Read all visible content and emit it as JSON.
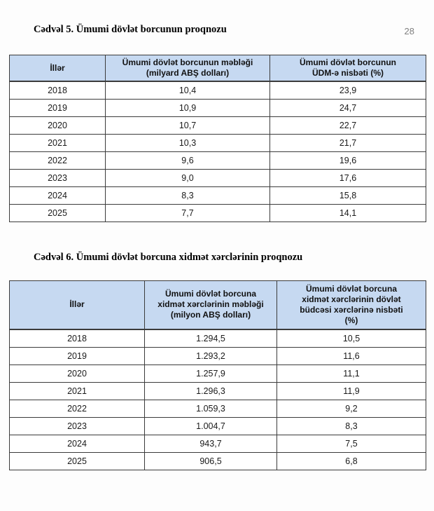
{
  "page": {
    "number": "28"
  },
  "colors": {
    "header_bg": "#C6D9F1",
    "table_border": "#3b3b3b",
    "page_number_gray": "#808080"
  },
  "table5": {
    "title": "Cədvəl 5. Ümumi dövlət borcunun proqnozu",
    "columns": [
      "İllər",
      "Ümumi dövlət borcunun məbləği\n(milyard ABŞ dolları)",
      "Ümumi dövlət borcunun\nÜDM-ə nisbəti (%)"
    ],
    "rows": [
      [
        "2018",
        "10,4",
        "23,9"
      ],
      [
        "2019",
        "10,9",
        "24,7"
      ],
      [
        "2020",
        "10,7",
        "22,7"
      ],
      [
        "2021",
        "10,3",
        "21,7"
      ],
      [
        "2022",
        "9,6",
        "19,6"
      ],
      [
        "2023",
        "9,0",
        "17,6"
      ],
      [
        "2024",
        "8,3",
        "15,8"
      ],
      [
        "2025",
        "7,7",
        "14,1"
      ]
    ]
  },
  "table6": {
    "title": "Cədvəl 6. Ümumi dövlət borcuna xidmət xərclərinin proqnozu",
    "columns": [
      "İllər",
      "Ümumi dövlət borcuna\nxidmət xərclərinin məbləği\n(milyon ABŞ dolları)",
      "Ümumi dövlət borcuna\nxidmət xərclərinin dövlət\nbüdcəsi xərclərinə nisbəti\n(%)"
    ],
    "rows": [
      [
        "2018",
        "1.294,5",
        "10,5"
      ],
      [
        "2019",
        "1.293,2",
        "11,6"
      ],
      [
        "2020",
        "1.257,9",
        "11,1"
      ],
      [
        "2021",
        "1.296,3",
        "11,9"
      ],
      [
        "2022",
        "1.059,3",
        "9,2"
      ],
      [
        "2023",
        "1.004,7",
        "8,3"
      ],
      [
        "2024",
        "943,7",
        "7,5"
      ],
      [
        "2025",
        "906,5",
        "6,8"
      ]
    ]
  }
}
